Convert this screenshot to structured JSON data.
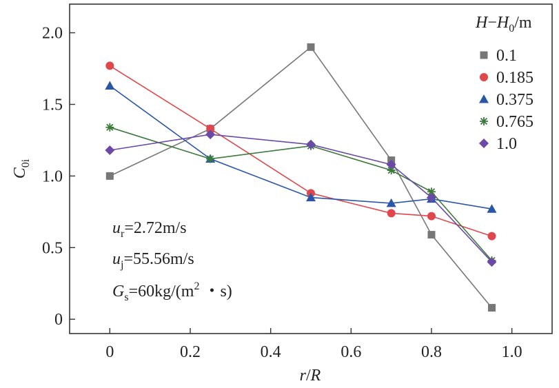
{
  "chart_data": {
    "type": "line",
    "title": "",
    "xlabel": {
      "main": "r",
      "sep": "/",
      "tail": "R"
    },
    "ylabel": {
      "main": "C",
      "sub": "0i"
    },
    "xlim": [
      -0.1,
      1.1
    ],
    "ylim": [
      -0.1,
      2.2
    ],
    "x_ticks": [
      0,
      0.2,
      0.4,
      0.6,
      0.8,
      1.0
    ],
    "x_tick_labels": [
      "0",
      "0.2",
      "0.4",
      "0.6",
      "0.8",
      "1.0"
    ],
    "y_ticks": [
      0,
      0.5,
      1.0,
      1.5,
      2.0
    ],
    "y_tick_labels": [
      "0",
      "0.5",
      "1.0",
      "1.5",
      "2.0"
    ],
    "legend": {
      "title_main": "H",
      "title_dash": "−",
      "title_h0": "H",
      "title_h0_sub": "0",
      "title_unit": "/m",
      "position": "top-right"
    },
    "series": [
      {
        "name": "0.1",
        "color": "#777777",
        "marker": "square",
        "x": [
          0,
          0.25,
          0.5,
          0.7,
          0.8,
          0.95
        ],
        "values": [
          1.0,
          1.33,
          1.9,
          1.11,
          0.59,
          0.08
        ]
      },
      {
        "name": "0.185",
        "color": "#e0474c",
        "marker": "circle",
        "x": [
          0,
          0.25,
          0.5,
          0.7,
          0.8,
          0.95
        ],
        "values": [
          1.77,
          1.33,
          0.88,
          0.74,
          0.72,
          0.58
        ]
      },
      {
        "name": "0.375",
        "color": "#2a56a8",
        "marker": "triangle",
        "x": [
          0,
          0.25,
          0.5,
          0.7,
          0.8,
          0.95
        ],
        "values": [
          1.63,
          1.12,
          0.85,
          0.81,
          0.84,
          0.77
        ]
      },
      {
        "name": "0.765",
        "color": "#3b7a3b",
        "marker": "star",
        "x": [
          0,
          0.25,
          0.5,
          0.7,
          0.8,
          0.95
        ],
        "values": [
          1.34,
          1.12,
          1.21,
          1.04,
          0.89,
          0.41
        ]
      },
      {
        "name": "1.0",
        "color": "#6a4aa6",
        "marker": "diamond",
        "x": [
          0,
          0.25,
          0.5,
          0.7,
          0.8,
          0.95
        ],
        "values": [
          1.18,
          1.29,
          1.22,
          1.08,
          0.85,
          0.4
        ]
      }
    ],
    "annotations": [
      {
        "main": "u",
        "sub": "r",
        "rest": "=2.72m/s"
      },
      {
        "main": "u",
        "sub": "j",
        "rest": "=55.56m/s"
      },
      {
        "main": "G",
        "sub": "s",
        "rest": "=60kg/(m",
        "sup": "2",
        "tail": " ・s)"
      }
    ]
  }
}
